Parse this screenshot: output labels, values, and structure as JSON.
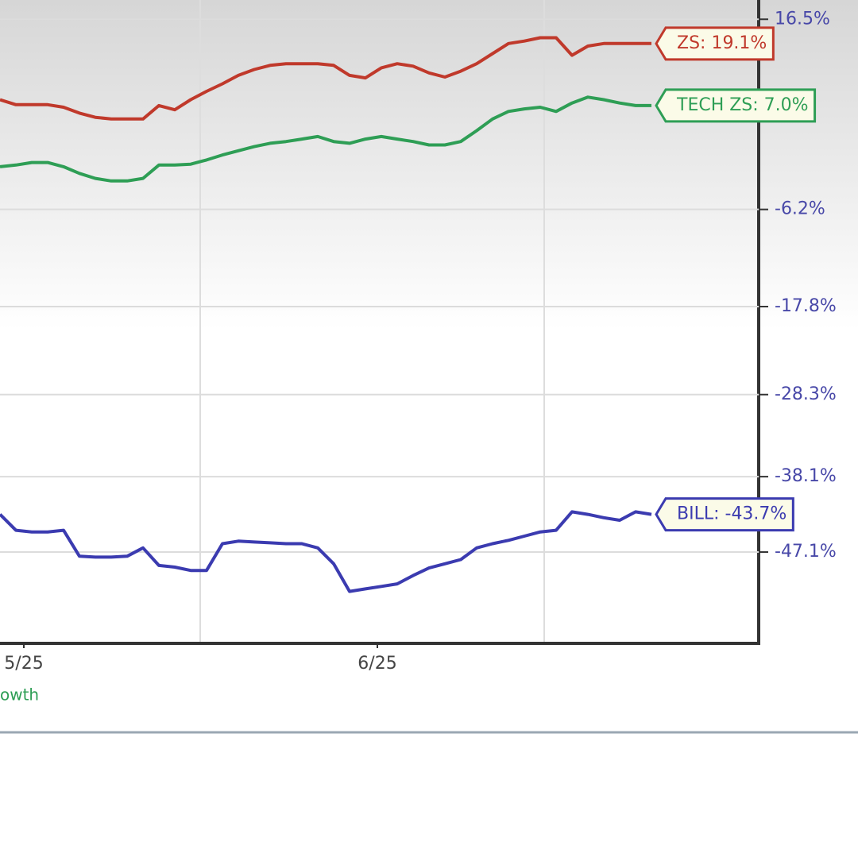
{
  "chart_data": {
    "type": "line",
    "x": [
      0,
      1,
      2,
      3,
      4,
      5,
      6,
      7,
      8,
      9,
      10,
      11,
      12,
      13,
      14,
      15,
      16,
      17,
      18,
      19,
      20,
      21,
      22,
      23,
      24,
      25,
      26,
      27,
      28,
      29,
      30,
      31,
      32,
      33,
      34,
      35,
      36,
      37,
      38,
      39,
      40,
      41
    ],
    "xlim": [
      0,
      47.75
    ],
    "xticks": [
      {
        "value": 1.5,
        "label": "5/25"
      },
      {
        "value": 23.75,
        "label": "6/25"
      }
    ],
    "ylim": [
      -58,
      18.8
    ],
    "yticks": [
      {
        "value": 16.5,
        "label": "16.5%"
      },
      {
        "value": -6.2,
        "label": "-6.2%"
      },
      {
        "value": -17.8,
        "label": "-17.8%"
      },
      {
        "value": -28.3,
        "label": "-28.3%"
      },
      {
        "value": -38.1,
        "label": "-38.1%"
      },
      {
        "value": -47.1,
        "label": "-47.1%"
      }
    ],
    "grid": true,
    "legend_text": "owth",
    "series": [
      {
        "name": "ZS: 19.1%",
        "color": "#c0392b",
        "values": [
          6.9,
          6.3,
          6.3,
          6.3,
          6.0,
          5.3,
          4.8,
          4.6,
          4.6,
          4.6,
          6.2,
          5.7,
          6.9,
          7.9,
          8.8,
          9.8,
          10.5,
          11.0,
          11.2,
          11.2,
          11.2,
          11.0,
          9.8,
          9.5,
          10.7,
          11.2,
          10.9,
          10.1,
          9.6,
          10.3,
          11.2,
          12.4,
          13.6,
          13.9,
          14.3,
          14.3,
          12.2,
          13.3,
          13.6,
          13.6,
          13.6,
          13.6
        ]
      },
      {
        "name": "TECH ZS: 7.0%",
        "color": "#2e9e55",
        "values": [
          -1.1,
          -0.9,
          -0.6,
          -0.6,
          -1.1,
          -1.9,
          -2.5,
          -2.8,
          -2.8,
          -2.5,
          -0.9,
          -0.9,
          -0.8,
          -0.3,
          0.3,
          0.8,
          1.3,
          1.7,
          1.9,
          2.2,
          2.5,
          1.9,
          1.7,
          2.2,
          2.5,
          2.2,
          1.9,
          1.5,
          1.5,
          1.9,
          3.2,
          4.6,
          5.5,
          5.8,
          6.0,
          5.5,
          6.5,
          7.2,
          6.9,
          6.5,
          6.2,
          6.2
        ]
      },
      {
        "name": "BILL: -43.7%",
        "color": "#3b3bb0",
        "values": [
          -42.6,
          -44.5,
          -44.7,
          -44.7,
          -44.5,
          -47.6,
          -47.7,
          -47.7,
          -47.6,
          -46.6,
          -48.7,
          -48.9,
          -49.3,
          -49.3,
          -46.1,
          -45.8,
          -45.9,
          -46.0,
          -46.1,
          -46.1,
          -46.6,
          -48.5,
          -51.8,
          -51.5,
          -51.2,
          -50.9,
          -49.9,
          -49.0,
          -48.5,
          -48.0,
          -46.6,
          -46.1,
          -45.7,
          -45.2,
          -44.7,
          -44.5,
          -42.3,
          -42.6,
          -43.0,
          -43.3,
          -42.3,
          -42.6
        ]
      }
    ]
  }
}
